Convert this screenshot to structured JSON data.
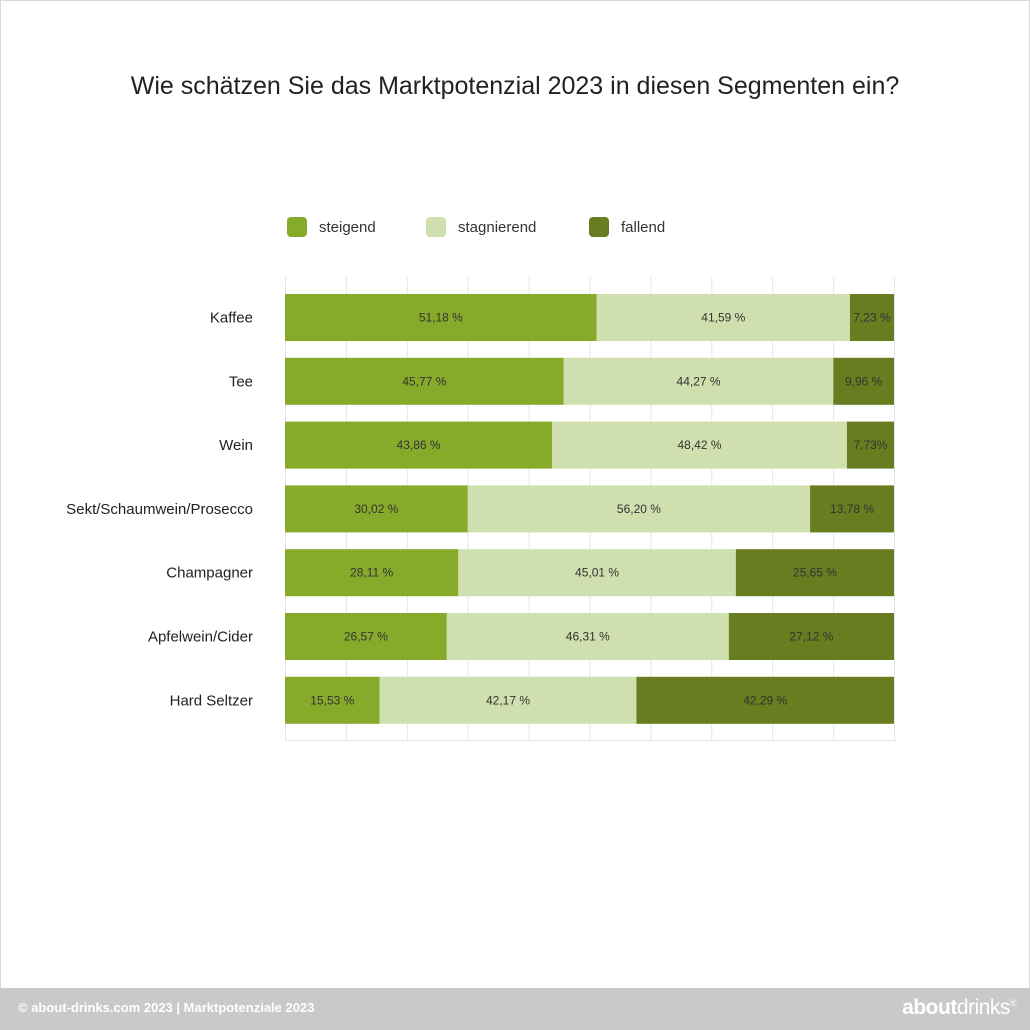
{
  "title": "Wie schätzen Sie das Marktpotenzial 2023 in diesen Segmenten ein?",
  "colors": {
    "steigend": "#86aa2a",
    "stagnierend": "#cfdfae",
    "fallend": "#677d20",
    "footer_bg": "#c8cac9"
  },
  "legend": [
    {
      "label": "steigend",
      "color": "#86aa2a"
    },
    {
      "label": "stagnierend",
      "color": "#cfdfae"
    },
    {
      "label": "fallend",
      "color": "#677d20"
    }
  ],
  "chart_data": {
    "type": "bar",
    "orientation": "horizontal",
    "stacked": true,
    "title": "Wie schätzen Sie das Marktpotenzial 2023 in diesen Segmenten ein?",
    "categories": [
      "Kaffee",
      "Tee",
      "Wein",
      "Sekt/Schaumwein/Prosecco",
      "Champagner",
      "Apfelwein/Cider",
      "Hard Seltzer"
    ],
    "series": [
      {
        "name": "steigend",
        "values": [
          51.18,
          45.77,
          43.86,
          30.02,
          28.11,
          26.57,
          15.53
        ],
        "labels": [
          "51,18 %",
          "45,77 %",
          "43,86 %",
          "30,02 %",
          "28,11 %",
          "26,57 %",
          "15,53 %"
        ]
      },
      {
        "name": "stagnierend",
        "values": [
          41.59,
          44.27,
          48.42,
          56.2,
          45.01,
          46.31,
          42.17
        ],
        "labels": [
          "41,59 %",
          "44,27 %",
          "48,42 %",
          "56,20 %",
          "45,01 %",
          "46,31 %",
          "42,17 %"
        ]
      },
      {
        "name": "fallend",
        "values": [
          7.23,
          9.96,
          7.73,
          13.78,
          25.65,
          27.12,
          42.29
        ],
        "labels": [
          "7,23 %",
          "9,96 %",
          "7,73%",
          "13,78 %",
          "25,65 %",
          "27,12 %",
          "42,29 %"
        ]
      }
    ],
    "legend_position": "top",
    "grid": true
  },
  "footer": {
    "text": "© about-drinks.com 2023  |  Marktpotenziale 2023",
    "logo_bold": "about",
    "logo_light": "drinks",
    "logo_mark": "®"
  }
}
